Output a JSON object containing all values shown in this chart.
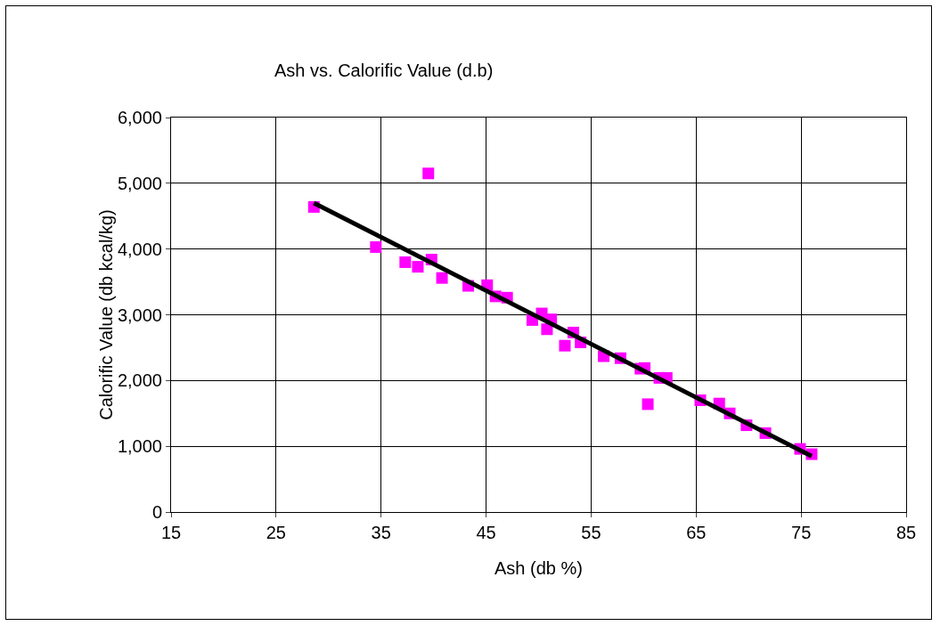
{
  "chart_data": {
    "type": "scatter",
    "title": "Ash vs. Calorific Value (d.b)",
    "xlabel": "Ash (db %)",
    "ylabel": "Calorific Value (db kcal/kg)",
    "xlim": [
      15,
      85
    ],
    "xticks": [
      15,
      25,
      35,
      45,
      55,
      65,
      75,
      85
    ],
    "ylim": [
      0,
      6000
    ],
    "yticks": [
      0,
      {
        "value": 1000,
        "label": "1,000"
      },
      {
        "value": 2000,
        "label": "2,000"
      },
      {
        "value": 3000,
        "label": "3,000"
      },
      {
        "value": 4000,
        "label": "4,000"
      },
      {
        "value": 5000,
        "label": "5,000"
      },
      {
        "value": 6000,
        "label": "6,000"
      }
    ],
    "grid": true,
    "marker": "square",
    "series": [
      {
        "color": "#ff00ff",
        "x": [
          28.6,
          34.5,
          37.3,
          38.5,
          39.5,
          39.8,
          40.8,
          43.3,
          45.1,
          45.9,
          47.0,
          49.4,
          50.3,
          50.8,
          51.2,
          52.5,
          53.3,
          54.0,
          56.2,
          57.8,
          59.7,
          60.1,
          60.4,
          61.5,
          62.2,
          65.4,
          67.2,
          68.2,
          69.8,
          71.6,
          74.9,
          76.0
        ],
        "values": [
          4640,
          4030,
          3800,
          3730,
          5150,
          3840,
          3560,
          3440,
          3450,
          3280,
          3260,
          2920,
          3020,
          2780,
          2930,
          2530,
          2730,
          2580,
          2370,
          2340,
          2180,
          2190,
          1640,
          2040,
          2040,
          1700,
          1650,
          1500,
          1320,
          1200,
          960,
          880
        ]
      },
      {
        "type": "line",
        "marker": "none",
        "color": "#000000",
        "line_style": "solid",
        "x": [
          28.6,
          76.0
        ],
        "values": [
          4700,
          850
        ]
      }
    ]
  }
}
